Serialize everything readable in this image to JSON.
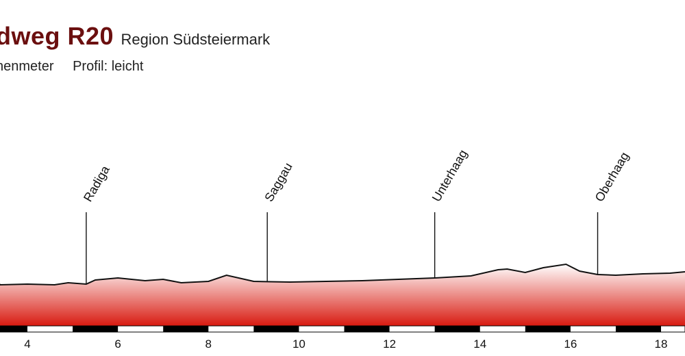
{
  "header": {
    "title": "dweg R20",
    "region": "Region Südsteiermark",
    "subtitle_left": "henmeter",
    "subtitle_profile": "Profil: leicht"
  },
  "colors": {
    "title": "#6b0f0f",
    "fill_top": "#ffffff",
    "fill_bottom": "#d81a10",
    "profile_line": "#111111",
    "axis_bar": "#000000"
  },
  "chart_data": {
    "type": "area",
    "title": "",
    "xlabel": "",
    "ylabel": "",
    "x_ticks": [
      4,
      6,
      8,
      10,
      12,
      14,
      16,
      18
    ],
    "xlim": [
      2.2,
      18.6
    ],
    "x": [
      2.2,
      2.8,
      3.4,
      4.0,
      4.6,
      4.9,
      5.3,
      5.5,
      6.0,
      6.6,
      7.0,
      7.4,
      8.0,
      8.4,
      9.0,
      9.8,
      10.6,
      11.4,
      12.2,
      13.0,
      13.8,
      14.4,
      14.6,
      15.0,
      15.4,
      15.9,
      16.2,
      16.6,
      17.0,
      17.6,
      18.2,
      18.6
    ],
    "values": [
      380,
      381,
      380,
      381,
      380,
      383,
      381,
      387,
      390,
      386,
      388,
      383,
      385,
      394,
      385,
      384,
      385,
      386,
      388,
      390,
      393,
      402,
      403,
      398,
      405,
      410,
      400,
      395,
      394,
      396,
      397,
      399
    ],
    "ylim": [
      320,
      460
    ],
    "places": [
      {
        "name": "Radiga",
        "x": 5.3
      },
      {
        "name": "Saggau",
        "x": 9.3
      },
      {
        "name": "Unterhaag",
        "x": 13.0
      },
      {
        "name": "Oberhaag",
        "x": 16.6
      }
    ]
  }
}
